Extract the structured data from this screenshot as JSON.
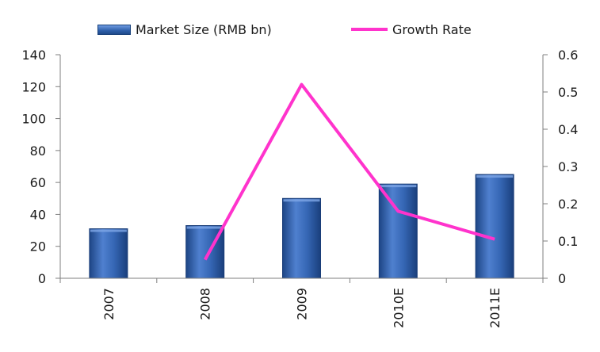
{
  "chart_data": {
    "type": "bar",
    "categories": [
      "2007",
      "2008",
      "2009",
      "2010E",
      "2011E"
    ],
    "series": [
      {
        "name": "Market Size (RMB bn)",
        "type": "bar",
        "axis": "left",
        "values": [
          31,
          33,
          50,
          59,
          65
        ]
      },
      {
        "name": "Growth Rate",
        "type": "line",
        "axis": "right",
        "values": [
          null,
          0.05,
          0.52,
          0.18,
          0.105
        ]
      }
    ],
    "ylim_left": [
      0,
      140
    ],
    "yticks_left": [
      "0",
      "20",
      "40",
      "60",
      "80",
      "100",
      "120",
      "140"
    ],
    "ylim_right": [
      0,
      0.6
    ],
    "yticks_right": [
      "0",
      "0.1",
      "0.2",
      "0.3",
      "0.4",
      "0.5",
      "0.6"
    ],
    "legend_position": "top",
    "grid": false,
    "colors": {
      "bar": "#2e5faa",
      "line": "#ff33cc",
      "axis": "#7f7f7f"
    }
  }
}
